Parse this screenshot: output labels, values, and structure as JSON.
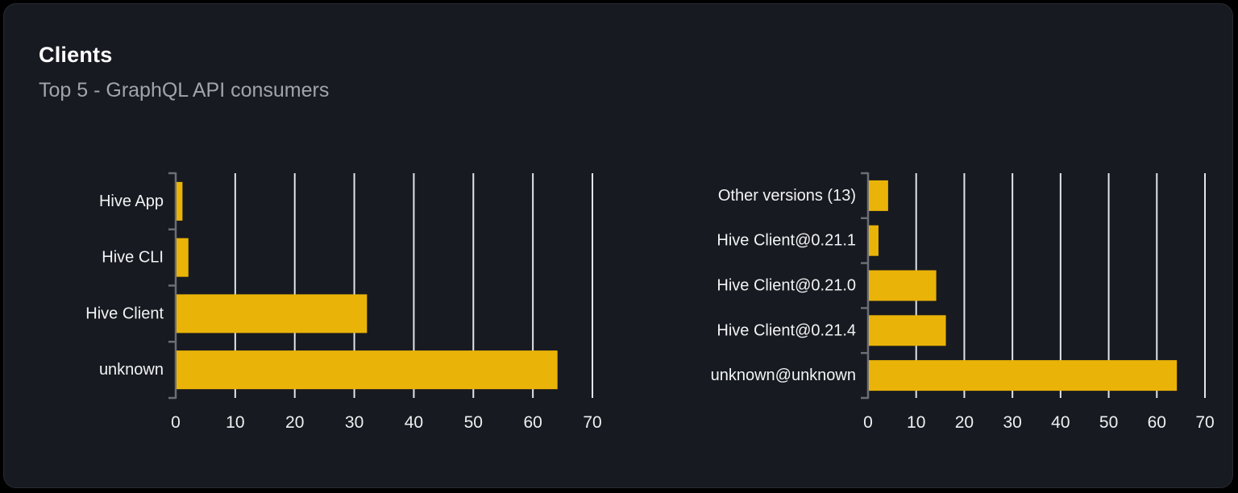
{
  "card": {
    "title": "Clients",
    "subtitle": "Top 5 - GraphQL API consumers"
  },
  "colors": {
    "background": "#000000",
    "card_background": "#171a20",
    "card_border": "#272a31",
    "title": "#ffffff",
    "subtitle": "#a2a4ab",
    "bar": "#eab308",
    "axis": "#6b6e76",
    "gridline": "#e2e5ea",
    "category_label": "#f2f3f5",
    "tick_label": "#eef0f2"
  },
  "chart_data": [
    {
      "type": "bar",
      "orientation": "horizontal",
      "name": "clients-by-name",
      "title": "",
      "categories": [
        "Hive App",
        "Hive CLI",
        "Hive Client",
        "unknown"
      ],
      "values": [
        1,
        2,
        32,
        64
      ],
      "xlabel": "",
      "ylabel": "",
      "xlim": [
        0,
        70
      ],
      "xticks": [
        0,
        10,
        20,
        30,
        40,
        50,
        60,
        70
      ],
      "grid": true,
      "legend": false,
      "bar_color": "#eab308"
    },
    {
      "type": "bar",
      "orientation": "horizontal",
      "name": "clients-by-version",
      "title": "",
      "categories": [
        "Other versions (13)",
        "Hive Client@0.21.1",
        "Hive Client@0.21.0",
        "Hive Client@0.21.4",
        "unknown@unknown"
      ],
      "values": [
        4,
        2,
        14,
        16,
        64
      ],
      "xlabel": "",
      "ylabel": "",
      "xlim": [
        0,
        70
      ],
      "xticks": [
        0,
        10,
        20,
        30,
        40,
        50,
        60,
        70
      ],
      "grid": true,
      "legend": false,
      "bar_color": "#eab308"
    }
  ]
}
